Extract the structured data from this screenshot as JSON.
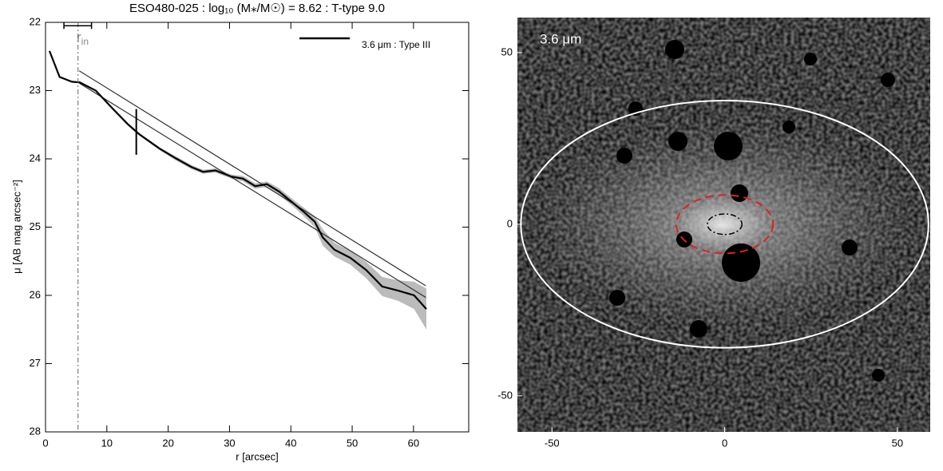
{
  "chart_data": [
    {
      "type": "line",
      "title": "ESO480-025 : log₁₀ (M⁎/M☉) = 8.62 : T-type 9.0",
      "x_label": "r [arcsec]",
      "y_label": "μ [AB mag arcsec⁻²]",
      "legend_label": "3.6 μm : Type III",
      "rin_label": "r",
      "rin_sub": "in",
      "xlim": [
        0,
        69
      ],
      "ylim": [
        22,
        28
      ],
      "xticks": [
        0,
        10,
        20,
        30,
        40,
        50,
        60
      ],
      "yticks": [
        22,
        23,
        24,
        25,
        26,
        27,
        28
      ],
      "y_inverted": true,
      "profile": {
        "color": "#000000",
        "band_color": "#bbbbbb",
        "x": [
          0.65,
          2.3,
          4.3,
          5.6,
          8.2,
          10.8,
          13.4,
          15.3,
          18.6,
          21.2,
          23.8,
          25.7,
          27.7,
          30.3,
          32.2,
          34.2,
          36.1,
          38.1,
          40,
          41.9,
          43.9,
          45.2,
          47.1,
          49.7,
          52.3,
          54.9,
          57.5,
          60.1,
          62.1
        ],
        "values": [
          22.42,
          22.8,
          22.87,
          22.88,
          23.0,
          23.25,
          23.49,
          23.64,
          23.85,
          23.99,
          24.12,
          24.19,
          24.17,
          24.26,
          24.29,
          24.4,
          24.37,
          24.48,
          24.62,
          24.76,
          24.92,
          25.15,
          25.33,
          25.45,
          25.63,
          25.87,
          25.93,
          26.0,
          26.2
        ],
        "errors": [
          0.01,
          0.01,
          0.01,
          0.01,
          0.01,
          0.02,
          0.02,
          0.02,
          0.02,
          0.03,
          0.03,
          0.03,
          0.03,
          0.03,
          0.04,
          0.04,
          0.04,
          0.05,
          0.05,
          0.06,
          0.08,
          0.12,
          0.1,
          0.1,
          0.12,
          0.14,
          0.15,
          0.2,
          0.3
        ]
      },
      "fits": [
        {
          "color": "#333333",
          "x": [
            5.5,
            62
          ],
          "values": [
            22.71,
            25.86
          ]
        },
        {
          "color": "#333333",
          "x": [
            5.5,
            62
          ],
          "values": [
            22.89,
            26.03
          ]
        }
      ],
      "r_in": 5.3,
      "r_in_range": [
        3.0,
        7.5
      ],
      "r_in_range_y": 22.05,
      "break_r": 14.8,
      "break_span": [
        23.27,
        23.94
      ]
    },
    {
      "type": "image",
      "label": "3.6 μm",
      "xlim": [
        -60,
        59.5
      ],
      "ylim": [
        -60.5,
        60.2
      ],
      "xticks": [
        -50,
        0,
        50
      ],
      "yticks": [
        -50,
        0,
        50
      ],
      "ellipses": [
        {
          "color": "#ffffff",
          "center": [
            0,
            0
          ],
          "a": 59,
          "b": 36
        },
        {
          "color": "#e02020",
          "center": [
            0,
            0
          ],
          "a": 14,
          "b": 8.5
        },
        {
          "color": "#000000",
          "center": [
            0,
            0
          ],
          "a": 5,
          "b": 3
        }
      ]
    }
  ]
}
